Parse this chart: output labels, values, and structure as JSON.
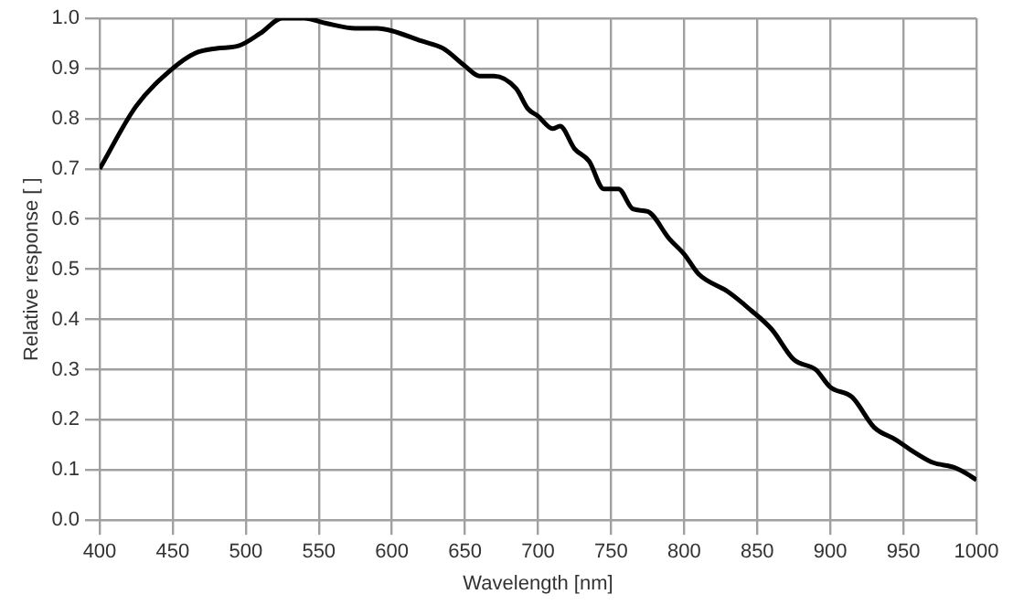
{
  "chart_data": {
    "type": "line",
    "xlabel": "Wavelength [nm]",
    "ylabel": "Relative response [ ]",
    "x": [
      400,
      425,
      450,
      465,
      480,
      495,
      510,
      525,
      540,
      555,
      575,
      590,
      600,
      620,
      635,
      650,
      660,
      670,
      685,
      693,
      700,
      710,
      715,
      725,
      735,
      745,
      755,
      765,
      775,
      790,
      800,
      810,
      830,
      845,
      860,
      875,
      890,
      900,
      915,
      930,
      945,
      955,
      970,
      985,
      995,
      1000
    ],
    "series": [
      {
        "color": "#000000",
        "values": [
          0.7,
          0.825,
          0.9,
          0.93,
          0.94,
          0.945,
          0.97,
          1.0,
          1.0,
          0.99,
          0.98,
          0.98,
          0.975,
          0.955,
          0.94,
          0.905,
          0.885,
          0.885,
          0.86,
          0.82,
          0.805,
          0.78,
          0.785,
          0.74,
          0.715,
          0.66,
          0.66,
          0.62,
          0.615,
          0.56,
          0.53,
          0.49,
          0.455,
          0.42,
          0.38,
          0.32,
          0.3,
          0.265,
          0.245,
          0.185,
          0.16,
          0.14,
          0.115,
          0.105,
          0.09,
          0.08
        ]
      }
    ],
    "xlim": [
      400,
      1000
    ],
    "xticks": [
      400,
      450,
      500,
      550,
      600,
      650,
      700,
      750,
      800,
      850,
      900,
      950,
      1000
    ],
    "ylim": [
      0,
      1
    ],
    "yticks": [
      {
        "value": 0,
        "label": "0.0"
      },
      {
        "value": 0.1,
        "label": "0.1"
      },
      {
        "value": 0.2,
        "label": "0.2"
      },
      {
        "value": 0.3,
        "label": "0.3"
      },
      {
        "value": 0.4,
        "label": "0.4"
      },
      {
        "value": 0.5,
        "label": "0.5"
      },
      {
        "value": 0.6,
        "label": "0.6"
      },
      {
        "value": 0.7,
        "label": "0.7"
      },
      {
        "value": 0.8,
        "label": "0.8"
      },
      {
        "value": 0.9,
        "label": "0.9"
      },
      {
        "value": 1,
        "label": "1.0"
      }
    ],
    "grid": true,
    "legend": false,
    "marker": "none",
    "line_style": "solid"
  }
}
